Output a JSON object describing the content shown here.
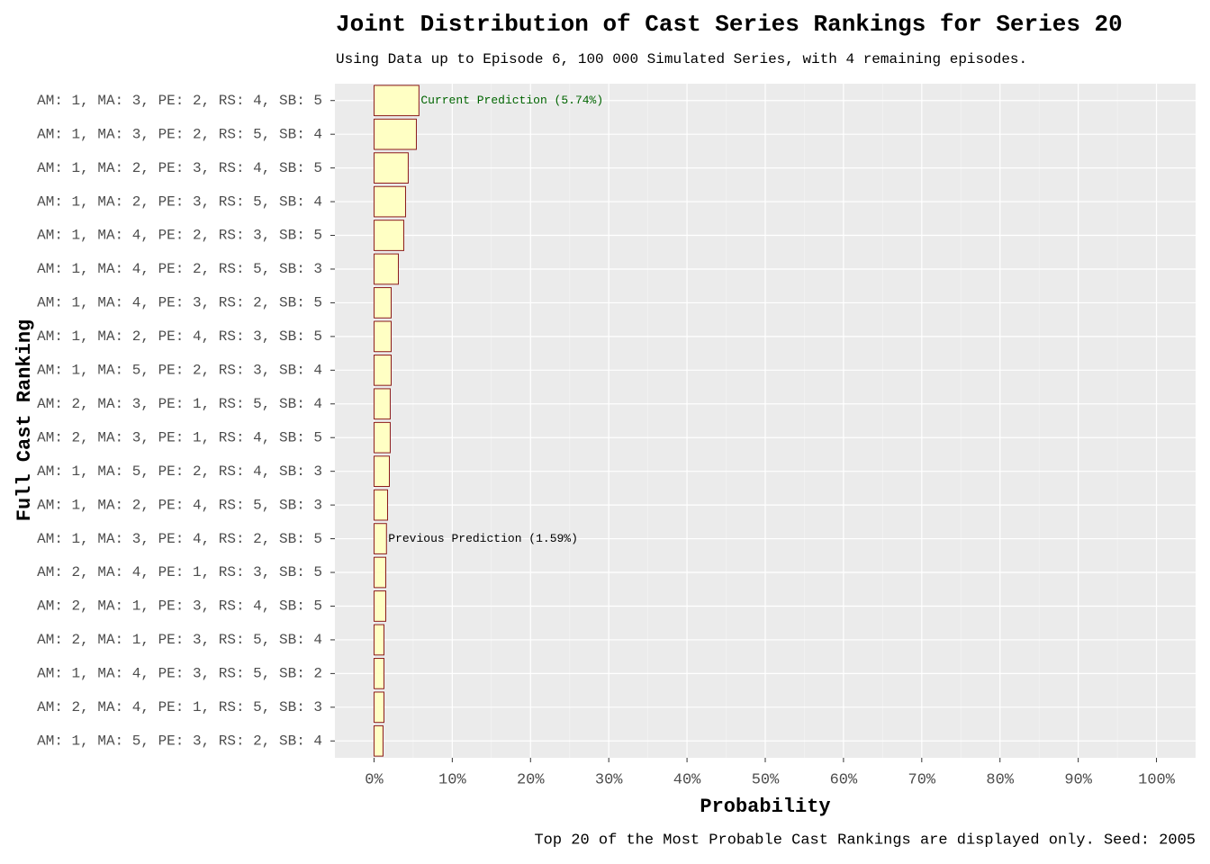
{
  "chart_data": {
    "type": "bar",
    "orientation": "horizontal",
    "title": "Joint Distribution of Cast Series Rankings for Series 20",
    "subtitle": "Using Data up to Episode 6, 100 000 Simulated Series, with 4 remaining episodes.",
    "x_label": "Probability",
    "y_label": "Full Cast Ranking",
    "caption": "Top 20 of the Most Probable Cast Rankings are displayed only. Seed: 2005",
    "categories": [
      "AM: 1, MA: 3, PE: 2, RS: 4, SB: 5",
      "AM: 1, MA: 3, PE: 2, RS: 5, SB: 4",
      "AM: 1, MA: 2, PE: 3, RS: 4, SB: 5",
      "AM: 1, MA: 2, PE: 3, RS: 5, SB: 4",
      "AM: 1, MA: 4, PE: 2, RS: 3, SB: 5",
      "AM: 1, MA: 4, PE: 2, RS: 5, SB: 3",
      "AM: 1, MA: 4, PE: 3, RS: 2, SB: 5",
      "AM: 1, MA: 2, PE: 4, RS: 3, SB: 5",
      "AM: 1, MA: 5, PE: 2, RS: 3, SB: 4",
      "AM: 2, MA: 3, PE: 1, RS: 5, SB: 4",
      "AM: 2, MA: 3, PE: 1, RS: 4, SB: 5",
      "AM: 1, MA: 5, PE: 2, RS: 4, SB: 3",
      "AM: 1, MA: 2, PE: 4, RS: 5, SB: 3",
      "AM: 1, MA: 3, PE: 4, RS: 2, SB: 5",
      "AM: 2, MA: 4, PE: 1, RS: 3, SB: 5",
      "AM: 2, MA: 1, PE: 3, RS: 4, SB: 5",
      "AM: 2, MA: 1, PE: 3, RS: 5, SB: 4",
      "AM: 1, MA: 4, PE: 3, RS: 5, SB: 2",
      "AM: 2, MA: 4, PE: 1, RS: 5, SB: 3",
      "AM: 1, MA: 5, PE: 3, RS: 2, SB: 4"
    ],
    "values": [
      5.74,
      5.41,
      4.37,
      4.03,
      3.8,
      3.11,
      2.19,
      2.19,
      2.19,
      2.07,
      2.07,
      1.96,
      1.73,
      1.59,
      1.5,
      1.5,
      1.27,
      1.27,
      1.27,
      1.15
    ],
    "color": "#ffffc4",
    "edge_color": "#8b1a1a",
    "annotations": [
      {
        "text": "Current Prediction (5.74%)",
        "category": "AM: 1, MA: 3, PE: 2, RS: 4, SB: 5",
        "color": "#006400"
      },
      {
        "text": "Previous Prediction (1.59%)",
        "category": "AM: 1, MA: 3, PE: 4, RS: 2, SB: 5",
        "color": "#000000"
      }
    ],
    "xlim": [
      -5,
      105
    ],
    "xticks": [
      {
        "value": 0,
        "label": "0%"
      },
      {
        "value": 10,
        "label": "10%"
      },
      {
        "value": 20,
        "label": "20%"
      },
      {
        "value": 30,
        "label": "30%"
      },
      {
        "value": 40,
        "label": "40%"
      },
      {
        "value": 50,
        "label": "50%"
      },
      {
        "value": 60,
        "label": "60%"
      },
      {
        "value": 70,
        "label": "70%"
      },
      {
        "value": 80,
        "label": "80%"
      },
      {
        "value": 90,
        "label": "90%"
      },
      {
        "value": 100,
        "label": "100%"
      }
    ],
    "grid": true
  }
}
